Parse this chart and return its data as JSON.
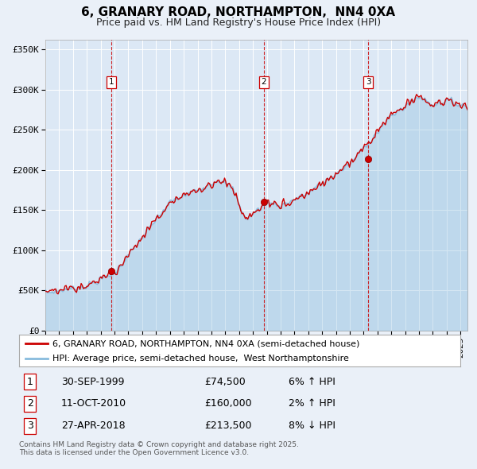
{
  "title": "6, GRANARY ROAD, NORTHAMPTON,  NN4 0XA",
  "subtitle": "Price paid vs. HM Land Registry's House Price Index (HPI)",
  "bg_color": "#eaf0f8",
  "plot_bg_color": "#dce8f5",
  "grid_color": "#ffffff",
  "red_line_color": "#cc0000",
  "blue_line_color": "#88bbdd",
  "sale_marker_color": "#cc0000",
  "vline_color": "#cc0000",
  "ylabel_ticks": [
    "£0",
    "£50K",
    "£100K",
    "£150K",
    "£200K",
    "£250K",
    "£300K",
    "£350K"
  ],
  "ytick_values": [
    0,
    50000,
    100000,
    150000,
    200000,
    250000,
    300000,
    350000
  ],
  "ylim": [
    0,
    362000
  ],
  "xmin": 1995.0,
  "xmax": 2025.5,
  "sales": [
    {
      "num": 1,
      "date_label": "30-SEP-1999",
      "x": 1999.75,
      "price": 74500,
      "pct": "6%",
      "dir": "↑"
    },
    {
      "num": 2,
      "date_label": "11-OCT-2010",
      "x": 2010.78,
      "price": 160000,
      "pct": "2%",
      "dir": "↑"
    },
    {
      "num": 3,
      "date_label": "27-APR-2018",
      "x": 2018.32,
      "price": 213500,
      "pct": "8%",
      "dir": "↓"
    }
  ],
  "legend_red_label": "6, GRANARY ROAD, NORTHAMPTON, NN4 0XA (semi-detached house)",
  "legend_blue_label": "HPI: Average price, semi-detached house,  West Northamptonshire",
  "footer": "Contains HM Land Registry data © Crown copyright and database right 2025.\nThis data is licensed under the Open Government Licence v3.0.",
  "title_fontsize": 11,
  "subtitle_fontsize": 9,
  "tick_fontsize": 8,
  "legend_fontsize": 8,
  "table_fontsize": 9,
  "footer_fontsize": 6.5
}
